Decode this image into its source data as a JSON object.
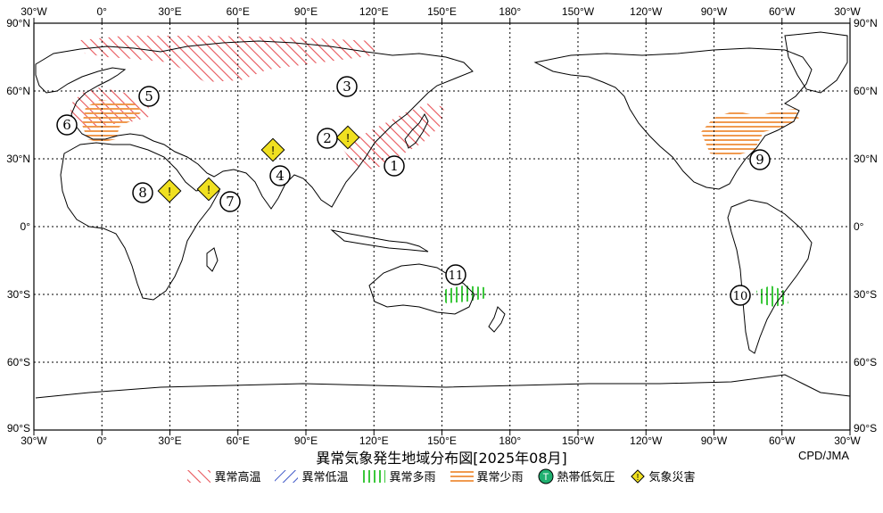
{
  "map": {
    "title": "異常気象発生地域分布図[2025年08月]",
    "credit": "CPD/JMA",
    "lon_labels": [
      "30°W",
      "0°",
      "30°E",
      "60°E",
      "90°E",
      "120°E",
      "150°E",
      "180°",
      "150°W",
      "120°W",
      "90°W",
      "60°W",
      "30°W"
    ],
    "lat_labels_left": [
      "90°N",
      "60°N",
      "30°N",
      "0°",
      "30°S",
      "60°S",
      "90°S"
    ],
    "lat_labels_right": [
      "90°N",
      "60°N",
      "30°N",
      "0°",
      "30°S",
      "60°S",
      "90°S"
    ]
  },
  "legend": {
    "items": [
      {
        "label": "異常高温",
        "type": "hot",
        "color": "#e8555a"
      },
      {
        "label": "異常低温",
        "type": "cold",
        "color": "#4058c8"
      },
      {
        "label": "異常多雨",
        "type": "wet",
        "color": "#3cc83c"
      },
      {
        "label": "異常少雨",
        "type": "dry",
        "color": "#f09a50"
      },
      {
        "label": "熱帯低気圧",
        "type": "cyclone",
        "color": "#20b070",
        "symbol": "T"
      },
      {
        "label": "気象災害",
        "type": "disaster",
        "color": "#f0e020",
        "symbol": "!"
      }
    ]
  },
  "regions": [
    {
      "id": "1",
      "type": "hot"
    },
    {
      "id": "2",
      "type": "hot"
    },
    {
      "id": "3",
      "type": "hot"
    },
    {
      "id": "4",
      "type": "disaster"
    },
    {
      "id": "5",
      "type": "hot"
    },
    {
      "id": "6",
      "type": "dry"
    },
    {
      "id": "7",
      "type": "disaster"
    },
    {
      "id": "8",
      "type": "disaster"
    },
    {
      "id": "9",
      "type": "dry"
    },
    {
      "id": "10",
      "type": "wet"
    },
    {
      "id": "11",
      "type": "wet"
    }
  ],
  "markers": {
    "n1": "1",
    "n2": "2",
    "n3": "3",
    "n4": "4",
    "n5": "5",
    "n6": "6",
    "n7": "7",
    "n8": "8",
    "n9": "9",
    "n10": "10",
    "n11": "11",
    "alert": "!"
  }
}
